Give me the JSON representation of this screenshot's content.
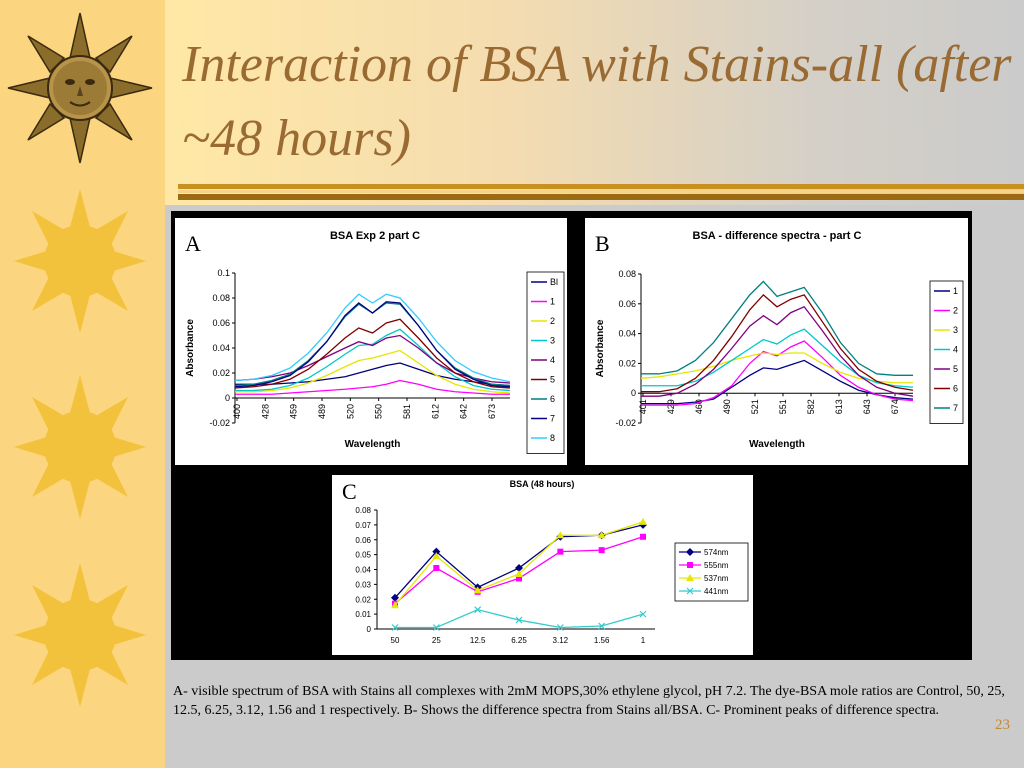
{
  "slide": {
    "title": "Interaction of BSA with Stains-all (after ~48 hours)",
    "caption": "A- visible spectrum of  BSA with Stains all complexes with 2mM MOPS,30% ethylene glycol, pH 7.2. The dye-BSA mole ratios are Control, 50, 25, 12.5, 6.25, 3.12, 1.56 and 1 respectively. B- Shows the difference spectra from Stains all/BSA. C- Prominent peaks of difference spectra.",
    "page_number": "23",
    "colors": {
      "title": "#9a6a33",
      "left_strip": "#fcd581",
      "sun": "#f2c23c",
      "rule_gold": "#c8901e",
      "page_number": "#c8892e"
    },
    "decorations": [
      "sun-face-icon",
      "sun-icon",
      "sun-icon",
      "sun-icon"
    ]
  },
  "chart_data": [
    {
      "id": "A",
      "panel_letter": "A",
      "type": "line",
      "title": "BSA Exp 2 part C",
      "xlabel": "Wavelength",
      "ylabel": "Absorbance",
      "x_tick_labels": [
        "400",
        "428",
        "459",
        "489",
        "520",
        "550",
        "581",
        "612",
        "642",
        "673"
      ],
      "y_ticks": [
        "0.1",
        "0.08",
        "0.06",
        "0.04",
        "0.02",
        "0",
        "-0.02"
      ],
      "ylim": [
        -0.02,
        0.1
      ],
      "xlim": [
        400,
        700
      ],
      "grid": false,
      "legend_position": "right",
      "series": [
        {
          "name": "Bl",
          "color": "#000080",
          "x": [
            400,
            420,
            440,
            460,
            480,
            500,
            520,
            535,
            550,
            565,
            580,
            600,
            620,
            640,
            660,
            680,
            700
          ],
          "y": [
            0.011,
            0.011,
            0.011,
            0.012,
            0.013,
            0.015,
            0.017,
            0.02,
            0.023,
            0.026,
            0.028,
            0.023,
            0.018,
            0.015,
            0.013,
            0.011,
            0.01
          ]
        },
        {
          "name": "1",
          "color": "#ff00ff",
          "x": [
            400,
            420,
            440,
            460,
            480,
            500,
            520,
            535,
            550,
            565,
            580,
            600,
            620,
            640,
            660,
            680,
            700
          ],
          "y": [
            0.003,
            0.003,
            0.003,
            0.004,
            0.005,
            0.006,
            0.007,
            0.008,
            0.009,
            0.011,
            0.014,
            0.011,
            0.007,
            0.005,
            0.004,
            0.003,
            0.003
          ]
        },
        {
          "name": "2",
          "color": "#e6e600",
          "x": [
            400,
            420,
            440,
            460,
            480,
            500,
            520,
            535,
            550,
            565,
            580,
            600,
            620,
            640,
            660,
            680,
            700
          ],
          "y": [
            0.005,
            0.005,
            0.006,
            0.008,
            0.012,
            0.018,
            0.025,
            0.03,
            0.032,
            0.035,
            0.038,
            0.028,
            0.018,
            0.011,
            0.007,
            0.005,
            0.004
          ]
        },
        {
          "name": "3",
          "color": "#00c8c8",
          "x": [
            400,
            420,
            440,
            460,
            480,
            500,
            520,
            535,
            550,
            565,
            580,
            600,
            620,
            640,
            660,
            680,
            700
          ],
          "y": [
            0.006,
            0.006,
            0.007,
            0.01,
            0.016,
            0.025,
            0.035,
            0.042,
            0.043,
            0.05,
            0.055,
            0.042,
            0.028,
            0.017,
            0.01,
            0.007,
            0.006
          ]
        },
        {
          "name": "4",
          "color": "#800080",
          "x": [
            400,
            420,
            440,
            460,
            480,
            500,
            520,
            535,
            550,
            565,
            580,
            600,
            620,
            640,
            660,
            680,
            700
          ],
          "y": [
            0.014,
            0.015,
            0.017,
            0.02,
            0.026,
            0.033,
            0.04,
            0.045,
            0.042,
            0.048,
            0.05,
            0.04,
            0.028,
            0.02,
            0.016,
            0.013,
            0.012
          ]
        },
        {
          "name": "5",
          "color": "#800000",
          "x": [
            400,
            420,
            440,
            460,
            480,
            500,
            520,
            535,
            550,
            565,
            580,
            600,
            620,
            640,
            660,
            680,
            700
          ],
          "y": [
            0.008,
            0.009,
            0.011,
            0.015,
            0.023,
            0.035,
            0.048,
            0.056,
            0.052,
            0.06,
            0.063,
            0.048,
            0.032,
            0.02,
            0.013,
            0.009,
            0.008
          ]
        },
        {
          "name": "6",
          "color": "#008080",
          "x": [
            400,
            420,
            440,
            460,
            480,
            500,
            520,
            535,
            550,
            565,
            580,
            600,
            620,
            640,
            660,
            680,
            700
          ],
          "y": [
            0.01,
            0.011,
            0.014,
            0.019,
            0.03,
            0.045,
            0.065,
            0.075,
            0.068,
            0.076,
            0.075,
            0.058,
            0.038,
            0.024,
            0.016,
            0.011,
            0.01
          ]
        },
        {
          "name": "7",
          "color": "#000080",
          "x": [
            400,
            420,
            440,
            460,
            480,
            500,
            520,
            535,
            550,
            565,
            580,
            600,
            620,
            640,
            660,
            680,
            700
          ],
          "y": [
            0.009,
            0.01,
            0.013,
            0.018,
            0.029,
            0.045,
            0.066,
            0.076,
            0.068,
            0.077,
            0.076,
            0.058,
            0.038,
            0.023,
            0.015,
            0.01,
            0.009
          ]
        },
        {
          "name": "8",
          "color": "#33ccff",
          "x": [
            400,
            420,
            440,
            460,
            480,
            500,
            520,
            535,
            550,
            565,
            580,
            600,
            620,
            640,
            660,
            680,
            700
          ],
          "y": [
            0.014,
            0.015,
            0.018,
            0.024,
            0.036,
            0.052,
            0.072,
            0.083,
            0.076,
            0.083,
            0.08,
            0.064,
            0.045,
            0.03,
            0.021,
            0.016,
            0.013
          ]
        }
      ]
    },
    {
      "id": "B",
      "panel_letter": "B",
      "type": "line",
      "title": "BSA - difference spectra - part C",
      "xlabel": "Wavelength",
      "ylabel": "Absorbance",
      "x_tick_labels": [
        "401",
        "429",
        "460",
        "490",
        "521",
        "551",
        "582",
        "613",
        "643",
        "674"
      ],
      "y_ticks": [
        "0.08",
        "0.06",
        "0.04",
        "0.02",
        "0",
        "-0.02"
      ],
      "ylim": [
        -0.02,
        0.08
      ],
      "xlim": [
        400,
        700
      ],
      "grid": false,
      "legend_position": "right",
      "series": [
        {
          "name": "1",
          "color": "#000080",
          "x": [
            400,
            420,
            440,
            460,
            480,
            500,
            520,
            535,
            550,
            565,
            580,
            600,
            620,
            640,
            660,
            680,
            700
          ],
          "y": [
            -0.007,
            -0.007,
            -0.007,
            -0.006,
            -0.004,
            0.004,
            0.012,
            0.017,
            0.016,
            0.019,
            0.022,
            0.015,
            0.008,
            0.002,
            -0.001,
            -0.003,
            -0.004
          ]
        },
        {
          "name": "2",
          "color": "#ff00ff",
          "x": [
            400,
            420,
            440,
            460,
            480,
            500,
            520,
            535,
            550,
            565,
            580,
            600,
            620,
            640,
            660,
            680,
            700
          ],
          "y": [
            -0.008,
            -0.008,
            -0.008,
            -0.007,
            -0.003,
            0.005,
            0.02,
            0.028,
            0.025,
            0.031,
            0.035,
            0.024,
            0.012,
            0.004,
            -0.001,
            -0.004,
            -0.005
          ]
        },
        {
          "name": "3",
          "color": "#e6e600",
          "x": [
            400,
            420,
            440,
            460,
            480,
            500,
            520,
            535,
            550,
            565,
            580,
            600,
            620,
            640,
            660,
            680,
            700
          ],
          "y": [
            0.01,
            0.011,
            0.013,
            0.015,
            0.018,
            0.022,
            0.025,
            0.027,
            0.026,
            0.027,
            0.027,
            0.02,
            0.014,
            0.01,
            0.008,
            0.007,
            0.007
          ]
        },
        {
          "name": "4",
          "color": "#00c8c8",
          "x": [
            400,
            420,
            440,
            460,
            480,
            500,
            520,
            535,
            550,
            565,
            580,
            600,
            620,
            640,
            660,
            680,
            700
          ],
          "y": [
            0.005,
            0.005,
            0.005,
            0.008,
            0.014,
            0.022,
            0.03,
            0.036,
            0.033,
            0.039,
            0.043,
            0.032,
            0.021,
            0.012,
            0.007,
            0.005,
            0.004
          ]
        },
        {
          "name": "5",
          "color": "#800080",
          "x": [
            400,
            420,
            440,
            460,
            480,
            500,
            520,
            535,
            550,
            565,
            580,
            600,
            620,
            640,
            660,
            680,
            700
          ],
          "y": [
            -0.002,
            -0.002,
            0.0,
            0.006,
            0.016,
            0.03,
            0.045,
            0.052,
            0.046,
            0.054,
            0.058,
            0.042,
            0.025,
            0.012,
            0.004,
            0.0,
            -0.002
          ]
        },
        {
          "name": "6",
          "color": "#800000",
          "x": [
            400,
            420,
            440,
            460,
            480,
            500,
            520,
            535,
            550,
            565,
            580,
            600,
            620,
            640,
            660,
            680,
            700
          ],
          "y": [
            0.001,
            0.001,
            0.003,
            0.01,
            0.022,
            0.038,
            0.056,
            0.066,
            0.058,
            0.063,
            0.066,
            0.048,
            0.03,
            0.016,
            0.008,
            0.004,
            0.002
          ]
        },
        {
          "name": "7",
          "color": "#008080",
          "x": [
            400,
            420,
            440,
            460,
            480,
            500,
            520,
            535,
            550,
            565,
            580,
            600,
            620,
            640,
            660,
            680,
            700
          ],
          "y": [
            0.013,
            0.013,
            0.015,
            0.022,
            0.034,
            0.05,
            0.066,
            0.075,
            0.065,
            0.068,
            0.071,
            0.054,
            0.034,
            0.02,
            0.013,
            0.012,
            0.012
          ]
        }
      ]
    },
    {
      "id": "C",
      "panel_letter": "C",
      "type": "line",
      "title": "BSA (48 hours)",
      "xlabel": "",
      "ylabel": "",
      "categories": [
        "50",
        "25",
        "12.5",
        "6.25",
        "3.12",
        "1.56",
        "1"
      ],
      "y_ticks": [
        "0.08",
        "0.07",
        "0.06",
        "0.05",
        "0.04",
        "0.03",
        "0.02",
        "0.01",
        "0"
      ],
      "ylim": [
        0,
        0.08
      ],
      "grid": false,
      "legend_position": "right",
      "series": [
        {
          "name": "574nm",
          "color": "#000080",
          "marker": "diamond",
          "values": [
            0.021,
            0.052,
            0.028,
            0.041,
            0.062,
            0.063,
            0.07
          ]
        },
        {
          "name": "555nm",
          "color": "#ff00ff",
          "marker": "square",
          "values": [
            0.017,
            0.041,
            0.025,
            0.034,
            0.052,
            0.053,
            0.062
          ]
        },
        {
          "name": "537nm",
          "color": "#e6e600",
          "marker": "triangle",
          "values": [
            0.016,
            0.049,
            0.026,
            0.037,
            0.063,
            0.063,
            0.072
          ]
        },
        {
          "name": "441nm",
          "color": "#33cccc",
          "marker": "x",
          "values": [
            0.001,
            0.001,
            0.013,
            0.006,
            0.001,
            0.002,
            0.01
          ]
        }
      ]
    }
  ]
}
